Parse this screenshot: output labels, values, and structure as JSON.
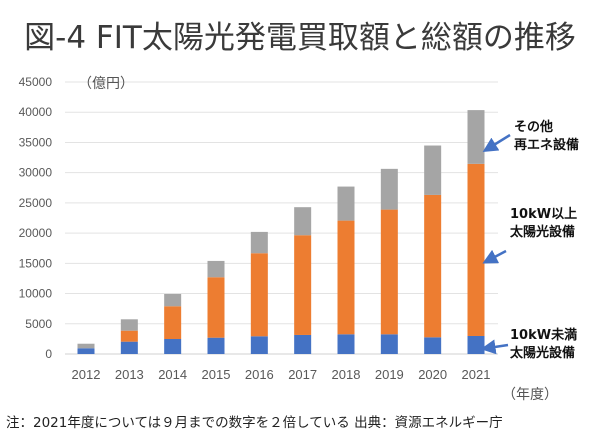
{
  "title": "図-4 FIT太陽光発電買取額と総額の推移",
  "note": "注：2021年度については９月までの数字を２倍している 出典：資源エネルギー庁",
  "chart_data": {
    "type": "bar",
    "stacked": true,
    "title": "図-4 FIT太陽光発電買取額と総額の推移",
    "ylabel": "（億円）",
    "xlabel": "（年度）",
    "ylim": [
      0,
      45000
    ],
    "yticks": [
      0,
      5000,
      10000,
      15000,
      20000,
      25000,
      30000,
      35000,
      40000,
      45000
    ],
    "grid": true,
    "categories": [
      "2012",
      "2013",
      "2014",
      "2015",
      "2016",
      "2017",
      "2018",
      "2019",
      "2020",
      "2021"
    ],
    "series": [
      {
        "name": "10kW未満 太陽光設備",
        "color": "#4472c4",
        "values": [
          950,
          2040,
          2480,
          2700,
          2930,
          3150,
          3260,
          3260,
          2760,
          2980
        ]
      },
      {
        "name": "10kW以上 太陽光設備",
        "color": "#ed7d31",
        "values": [
          0,
          1820,
          5420,
          10000,
          13740,
          16500,
          18810,
          20630,
          23560,
          28480
        ]
      },
      {
        "name": "その他 再エネ設備",
        "color": "#a5a5a5",
        "values": [
          750,
          1880,
          2030,
          2700,
          3530,
          4640,
          5630,
          6740,
          8170,
          8890
        ]
      }
    ],
    "annotations": [
      {
        "lines": [
          "その他",
          "再エネ設備"
        ],
        "target_series": "その他 再エネ設備"
      },
      {
        "lines": [
          "10kW以上",
          "太陽光設備"
        ],
        "target_series": "10kW以上 太陽光設備"
      },
      {
        "lines": [
          "10kW未満",
          "太陽光設備"
        ],
        "target_series": "10kW未満 太陽光設備"
      }
    ],
    "legend": "annotations-right"
  }
}
